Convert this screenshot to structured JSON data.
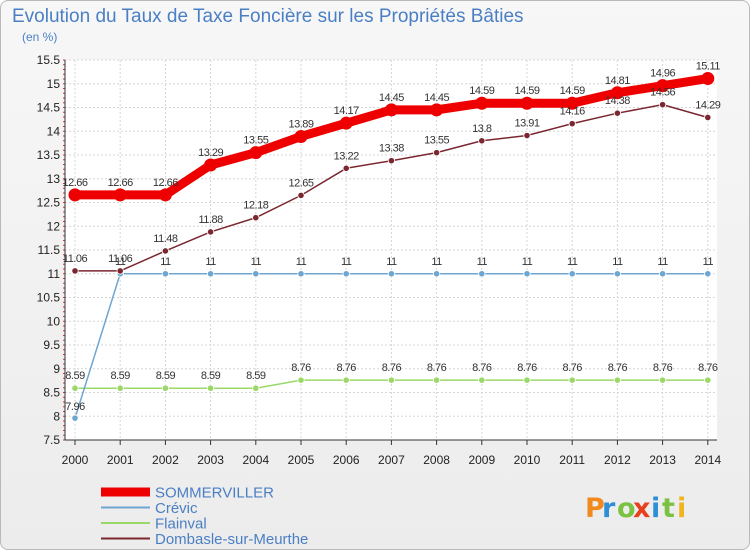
{
  "chart_data": {
    "type": "line",
    "title": "Evolution du Taux de Taxe Foncière sur les Propriétés Bâties",
    "ylabel": "(en %)",
    "xlabel": "",
    "x": [
      "2000",
      "2001",
      "2002",
      "2003",
      "2004",
      "2005",
      "2006",
      "2007",
      "2008",
      "2009",
      "2010",
      "2011",
      "2012",
      "2013",
      "2014"
    ],
    "yticks": [
      "7.5",
      "8",
      "8.5",
      "9",
      "9.5",
      "10",
      "10.5",
      "11",
      "11.5",
      "12",
      "12.5",
      "13",
      "13.5",
      "14",
      "14.5",
      "15",
      "15.5"
    ],
    "ylim": [
      7.5,
      15.5
    ],
    "grid": true,
    "legend_position": "bottom-left",
    "series": [
      {
        "name": "SOMMERVILLER",
        "color": "#ee0000",
        "values": [
          12.66,
          12.66,
          12.66,
          13.29,
          13.55,
          13.89,
          14.17,
          14.45,
          14.45,
          14.59,
          14.59,
          14.59,
          14.81,
          14.96,
          15.11
        ],
        "labels": [
          "12.66",
          "12.66",
          "12.66",
          "13.29",
          "13.55",
          "13.89",
          "14.17",
          "14.45",
          "14.45",
          "14.59",
          "14.59",
          "14.59",
          "14.81",
          "14.96",
          "15.11"
        ]
      },
      {
        "name": "Crévic",
        "color": "#6ea6d2",
        "values": [
          7.96,
          11,
          11,
          11,
          11,
          11,
          11,
          11,
          11,
          11,
          11,
          11,
          11,
          11,
          11
        ],
        "labels": [
          "7.96",
          "11",
          "11",
          "11",
          "11",
          "11",
          "11",
          "11",
          "11",
          "11",
          "11",
          "11",
          "11",
          "11",
          "11"
        ]
      },
      {
        "name": "Flainval",
        "color": "#9ad868",
        "values": [
          8.59,
          8.59,
          8.59,
          8.59,
          8.59,
          8.76,
          8.76,
          8.76,
          8.76,
          8.76,
          8.76,
          8.76,
          8.76,
          8.76,
          8.76
        ],
        "labels": [
          "8.59",
          "8.59",
          "8.59",
          "8.59",
          "8.59",
          "8.76",
          "8.76",
          "8.76",
          "8.76",
          "8.76",
          "8.76",
          "8.76",
          "8.76",
          "8.76",
          "8.76"
        ]
      },
      {
        "name": "Dombasle-sur-Meurthe",
        "color": "#7a2730",
        "values": [
          11.06,
          11.06,
          11.48,
          11.88,
          12.18,
          12.65,
          13.22,
          13.38,
          13.55,
          13.8,
          13.91,
          14.16,
          14.38,
          14.56,
          14.29
        ],
        "labels": [
          "11.06",
          "11.06",
          "11.48",
          "11.88",
          "12.18",
          "12.65",
          "13.22",
          "13.38",
          "13.55",
          "13.8",
          "13.91",
          "14.16",
          "14.38",
          "14.56",
          "14.29"
        ]
      }
    ]
  },
  "branding": {
    "logo_letters": [
      "P",
      "r",
      "o",
      "x",
      "i",
      "t",
      "i"
    ],
    "logo_colors": [
      "#f08a1e",
      "#2f8fd6",
      "#7cc242",
      "#e8401c",
      "#2f8fd6",
      "#7cc242",
      "#f0b51e"
    ]
  }
}
